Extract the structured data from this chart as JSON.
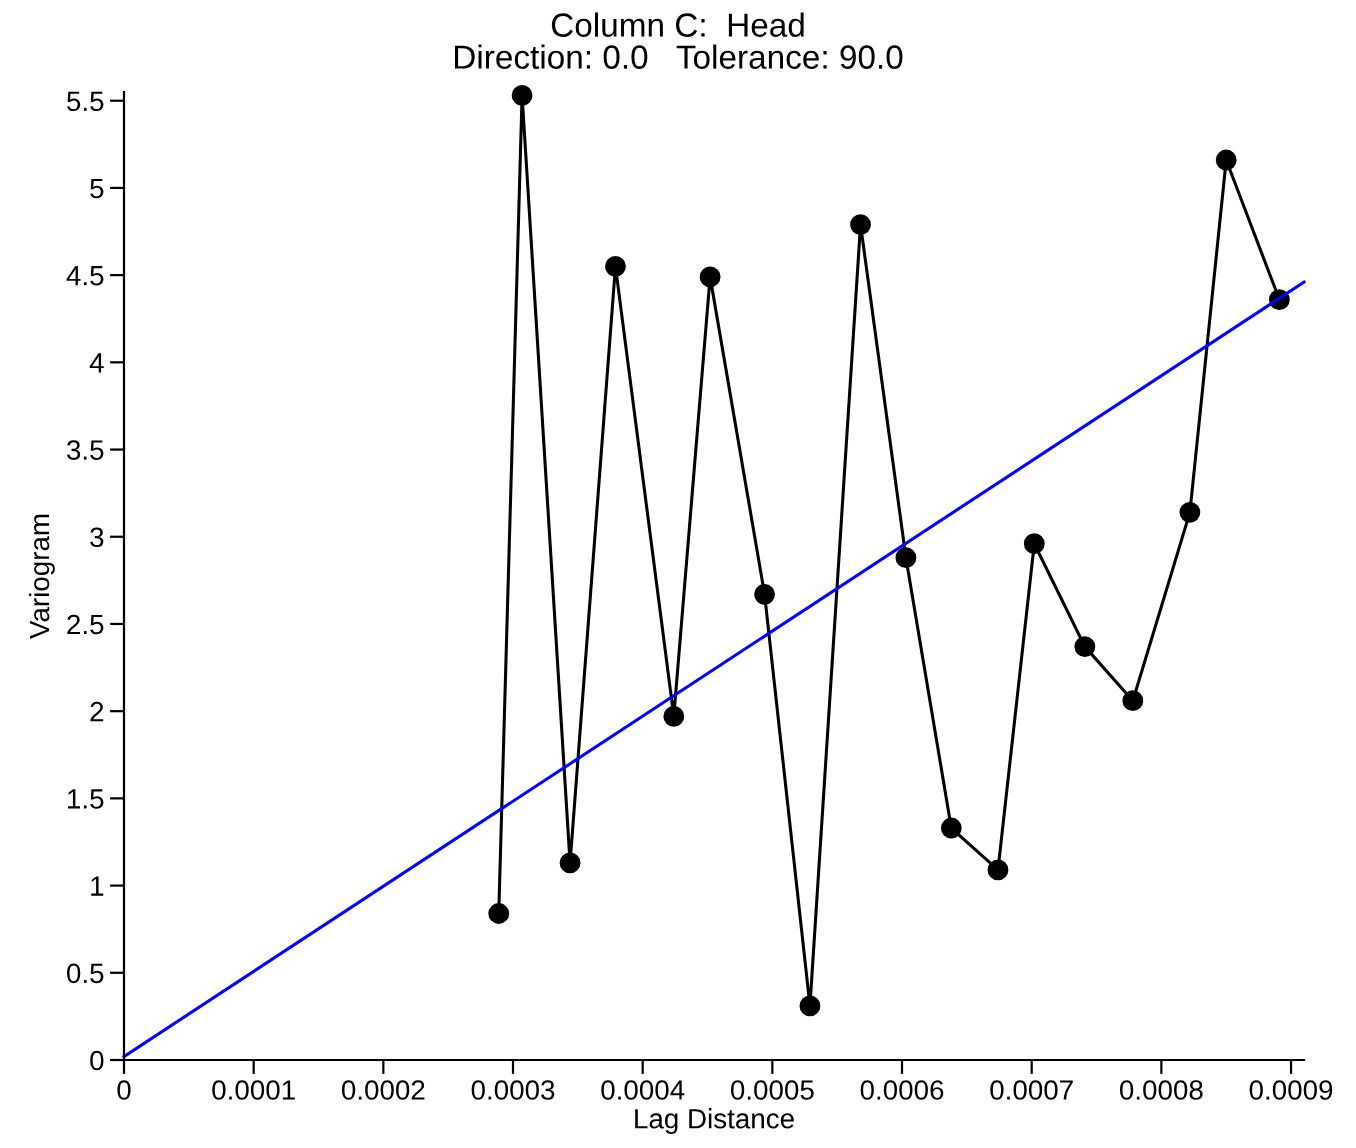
{
  "chart_data": {
    "type": "line",
    "title": "Column C:  Head",
    "subtitle": "Direction: 0.0   Tolerance: 90.0",
    "xlabel": "Lag Distance",
    "ylabel": "Variogram",
    "xlim": [
      0,
      0.00091
    ],
    "ylim": [
      0,
      5.55
    ],
    "xticks": [
      0,
      0.0001,
      0.0002,
      0.0003,
      0.0004,
      0.0005,
      0.0006,
      0.0007,
      0.0008,
      0.0009
    ],
    "yticks": [
      0,
      0.5,
      1,
      1.5,
      2,
      2.5,
      3,
      3.5,
      4,
      4.5,
      5,
      5.5
    ],
    "grid": false,
    "series": [
      {
        "color": "#000000",
        "marker": "circle",
        "x": [
          0.000289,
          0.000307,
          0.000344,
          0.000379,
          0.000424,
          0.000452,
          0.000494,
          0.000529,
          0.000568,
          0.000603,
          0.000638,
          0.000674,
          0.000702,
          0.000741,
          0.000778,
          0.000822,
          0.00085,
          0.000891
        ],
        "values": [
          0.84,
          5.53,
          1.13,
          4.55,
          1.97,
          4.49,
          2.67,
          0.31,
          4.79,
          2.88,
          1.33,
          1.09,
          2.96,
          2.37,
          2.06,
          3.14,
          5.16,
          4.36
        ]
      },
      {
        "color": "#0000ff",
        "marker": "none",
        "x": [
          0,
          0.00091
        ],
        "values": [
          0.02,
          4.46
        ]
      }
    ]
  }
}
